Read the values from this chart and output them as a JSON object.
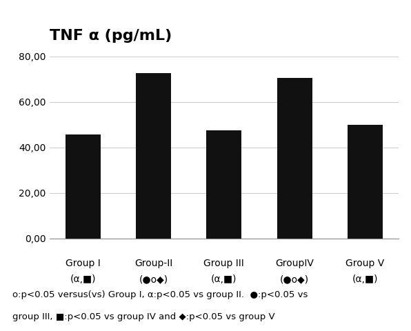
{
  "title": "TNF α (pg/mL)",
  "cat_line1": [
    "Group I",
    "Group-II",
    "Group III",
    "GroupIV",
    "Group V"
  ],
  "cat_line2": [
    "(α,■)",
    "(●o◆)",
    "(α,■)",
    "(●o◆)",
    "(α,■)"
  ],
  "values": [
    45.5,
    72.5,
    47.5,
    70.5,
    50.0
  ],
  "bar_color": "#111111",
  "ylim": [
    0,
    80
  ],
  "yticks": [
    0,
    20,
    40,
    60,
    80
  ],
  "ytick_labels": [
    "0,00",
    "20,00",
    "40,00",
    "60,00",
    "80,00"
  ],
  "footnote_line1": "o:p<0.05 versus(vs) Group I, α:p<0.05 vs group II.  ●:p<0.05 vs",
  "footnote_line2": "group III, ■:p<0.05 vs group IV and ◆:p<0.05 vs group V",
  "title_fontsize": 16,
  "tick_fontsize": 10,
  "xlabel_fontsize": 10,
  "footnote_fontsize": 9.5,
  "background_color": "#ffffff",
  "bar_width": 0.5
}
